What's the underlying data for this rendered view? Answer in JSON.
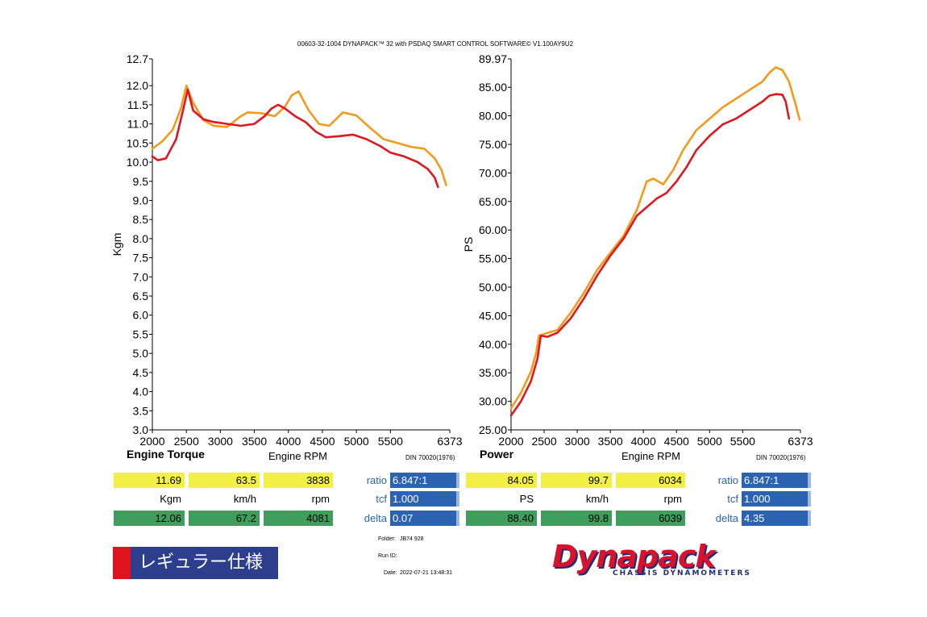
{
  "header": {
    "title": "00603-32-1004 DYNAPACK™ 32 with PSDAQ SMART CONTROL SOFTWARE© V1.100AY9U2"
  },
  "torque_panel": {
    "title": "Engine Torque",
    "xlabel": "Engine RPM",
    "din": "DIN 70020(1976)"
  },
  "power_panel": {
    "title": "Power",
    "xlabel": "Engine RPM",
    "din": "DIN 70020(1976)"
  },
  "chart_data": [
    {
      "type": "line",
      "ylabel": "Kgm",
      "xlim": [
        2000,
        6373
      ],
      "ylim": [
        3.0,
        12.7
      ],
      "xticks": [
        "2000",
        "2500",
        "3000",
        "3500",
        "4000",
        "4500",
        "5000",
        "5500",
        "6373"
      ],
      "yticks": [
        "3.0",
        "3.5",
        "4.0",
        "4.5",
        "5.0",
        "5.5",
        "6.0",
        "6.5",
        "7.0",
        "7.5",
        "8.0",
        "8.5",
        "9.0",
        "9.5",
        "10.0",
        "10.5",
        "11.0",
        "11.5",
        "12.0",
        "12.7"
      ],
      "series": [
        {
          "color": "#f39a1b",
          "x": [
            2000,
            2150,
            2300,
            2420,
            2500,
            2600,
            2750,
            2900,
            3100,
            3300,
            3400,
            3600,
            3800,
            3950,
            4050,
            4150,
            4300,
            4450,
            4600,
            4800,
            5000,
            5200,
            5400,
            5600,
            5800,
            6000,
            6150,
            6250,
            6320
          ],
          "y": [
            10.35,
            10.55,
            10.85,
            11.4,
            12.0,
            11.55,
            11.1,
            10.95,
            10.92,
            11.2,
            11.3,
            11.28,
            11.2,
            11.45,
            11.75,
            11.85,
            11.35,
            11.0,
            10.95,
            11.3,
            11.22,
            10.9,
            10.6,
            10.5,
            10.4,
            10.35,
            10.1,
            9.8,
            9.4
          ]
        },
        {
          "color": "#e0171f",
          "x": [
            2000,
            2080,
            2200,
            2350,
            2450,
            2520,
            2600,
            2750,
            2900,
            3100,
            3300,
            3500,
            3650,
            3750,
            3850,
            3950,
            4100,
            4250,
            4400,
            4550,
            4750,
            4950,
            5150,
            5350,
            5500,
            5700,
            5900,
            6050,
            6150,
            6200
          ],
          "y": [
            10.15,
            10.05,
            10.1,
            10.6,
            11.35,
            11.9,
            11.35,
            11.12,
            11.05,
            11.0,
            10.95,
            11.0,
            11.2,
            11.4,
            11.5,
            11.4,
            11.2,
            11.05,
            10.8,
            10.65,
            10.68,
            10.72,
            10.6,
            10.42,
            10.25,
            10.15,
            10.0,
            9.82,
            9.6,
            9.35
          ]
        }
      ]
    },
    {
      "type": "line",
      "ylabel": "PS",
      "xlim": [
        2000,
        6373
      ],
      "ylim": [
        25.0,
        89.97
      ],
      "xticks": [
        "2000",
        "2500",
        "3000",
        "3500",
        "4000",
        "4500",
        "5000",
        "5500",
        "6373"
      ],
      "yticks": [
        "25.00",
        "30.00",
        "35.00",
        "40.00",
        "45.00",
        "50.00",
        "55.00",
        "60.00",
        "65.00",
        "70.00",
        "75.00",
        "80.00",
        "85.00",
        "89.97"
      ],
      "series": [
        {
          "color": "#f39a1b",
          "x": [
            2000,
            2150,
            2300,
            2380,
            2420,
            2500,
            2700,
            2900,
            3100,
            3300,
            3500,
            3700,
            3900,
            4050,
            4150,
            4300,
            4450,
            4600,
            4800,
            5000,
            5200,
            5400,
            5600,
            5800,
            5900,
            6000,
            6100,
            6200,
            6300,
            6360
          ],
          "y": [
            28.8,
            31.5,
            35.2,
            38.5,
            41.5,
            41.8,
            42.5,
            45.5,
            49.0,
            53.0,
            56.0,
            59.0,
            63.5,
            68.5,
            69.0,
            68.0,
            70.5,
            74.0,
            77.5,
            79.5,
            81.5,
            83.0,
            84.5,
            86.0,
            87.5,
            88.5,
            88.0,
            86.0,
            82.0,
            79.3
          ]
        },
        {
          "color": "#e0171f",
          "x": [
            2000,
            2150,
            2300,
            2400,
            2450,
            2550,
            2700,
            2900,
            3100,
            3300,
            3500,
            3700,
            3900,
            4050,
            4200,
            4350,
            4500,
            4650,
            4800,
            5000,
            5200,
            5400,
            5600,
            5800,
            5900,
            6000,
            6100,
            6150,
            6200
          ],
          "y": [
            27.5,
            30.0,
            33.5,
            37.5,
            41.5,
            41.3,
            42.0,
            44.5,
            48.0,
            52.0,
            55.5,
            58.5,
            62.5,
            64.0,
            65.5,
            66.5,
            68.5,
            71.0,
            74.0,
            76.5,
            78.5,
            79.5,
            81.0,
            82.5,
            83.5,
            83.8,
            83.7,
            82.5,
            79.5
          ]
        }
      ]
    }
  ],
  "torque_readout": {
    "values": [
      "11.69",
      "63.5",
      "3838"
    ],
    "units": [
      "Kgm",
      "km/h",
      "rpm"
    ],
    "values2": [
      "12.06",
      "67.2",
      "4081"
    ],
    "labels": [
      "ratio",
      "tcf",
      "delta"
    ],
    "blue_values": [
      "6.847:1",
      "1.000",
      "0.07"
    ]
  },
  "power_readout": {
    "values": [
      "84.05",
      "99.7",
      "6034"
    ],
    "units": [
      "PS",
      "km/h",
      "rpm"
    ],
    "values2": [
      "88.40",
      "99.8",
      "6039"
    ],
    "labels": [
      "ratio",
      "tcf",
      "delta"
    ],
    "blue_values": [
      "6.847:1",
      "1.000",
      "4.35"
    ]
  },
  "meta": {
    "folder_label": "Folder:",
    "folder_value": "JB74 928",
    "runid_label": "Run ID:",
    "runid_value": "",
    "date_label": "Date:",
    "date_value": "2022-07-21 13:48:31"
  },
  "badge": {
    "text": "レギュラー仕様"
  },
  "logo": {
    "word": "Dynapack",
    "tagline": "CHASSIS DYNAMOMETERS"
  },
  "colors": {
    "orange": "#f39a1b",
    "red": "#e0171f",
    "yellow": "#f2ef45",
    "green": "#3e9e5c",
    "blue": "#2b63b0",
    "navy": "#2c3e8c"
  }
}
